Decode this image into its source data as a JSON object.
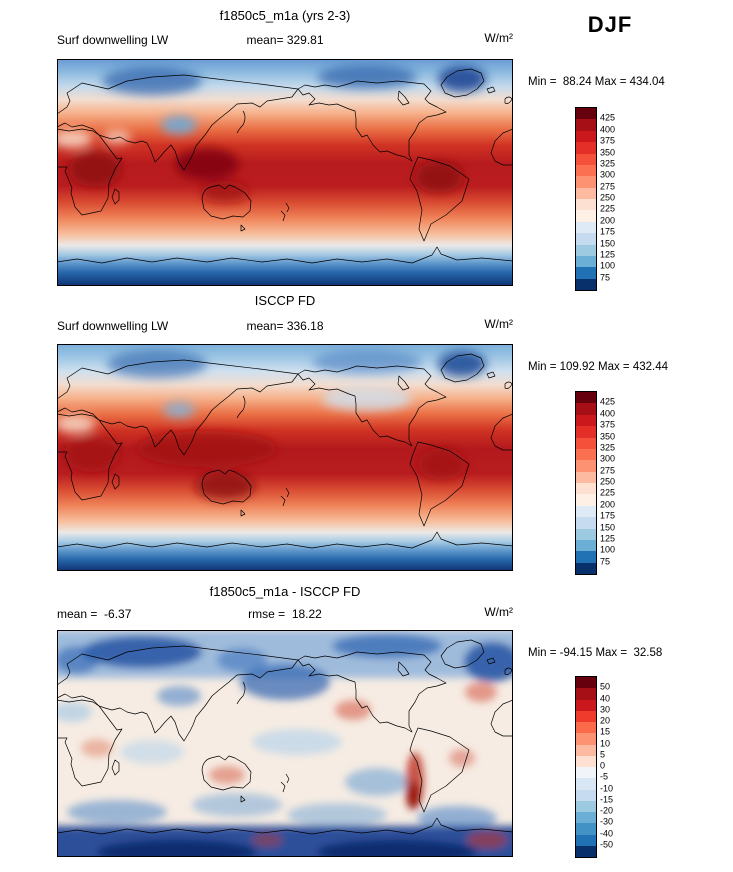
{
  "season": "DJF",
  "panels": [
    {
      "title": "f1850c5_m1a (yrs 2-3)",
      "field_label": "Surf downwelling LW",
      "mean_label": "mean= 329.81",
      "units": "W/m²",
      "minmax": "Min =  88.24 Max = 434.04",
      "colorbar": {
        "ticks": [
          "425",
          "400",
          "375",
          "350",
          "325",
          "300",
          "275",
          "250",
          "225",
          "200",
          "175",
          "150",
          "125",
          "100",
          "75"
        ],
        "colors": [
          "#67000d",
          "#a50f15",
          "#cb181d",
          "#e32f27",
          "#f4503a",
          "#fb7050",
          "#fc9272",
          "#fcbba1",
          "#fee0d2",
          "#fff0e6",
          "#deebf7",
          "#c6dbef",
          "#9ecae1",
          "#6baed6",
          "#2171b5",
          "#08306b"
        ]
      }
    },
    {
      "title": "ISCCP FD",
      "field_label": "Surf downwelling LW",
      "mean_label": "mean= 336.18",
      "units": "W/m²",
      "minmax": "Min = 109.92 Max = 432.44",
      "colorbar": {
        "ticks": [
          "425",
          "400",
          "375",
          "350",
          "325",
          "300",
          "275",
          "250",
          "225",
          "200",
          "175",
          "150",
          "125",
          "100",
          "75"
        ],
        "colors": [
          "#67000d",
          "#a50f15",
          "#cb181d",
          "#e32f27",
          "#f4503a",
          "#fb7050",
          "#fc9272",
          "#fcbba1",
          "#fee0d2",
          "#fff0e6",
          "#deebf7",
          "#c6dbef",
          "#9ecae1",
          "#6baed6",
          "#2171b5",
          "#08306b"
        ]
      }
    },
    {
      "title": "f1850c5_m1a - ISCCP FD",
      "mean_label": "mean =  -6.37",
      "rmse_label": "rmse =  18.22",
      "units": "W/m²",
      "minmax": "Min = -94.15 Max =  32.58",
      "colorbar": {
        "ticks": [
          "50",
          "40",
          "30",
          "20",
          "15",
          "10",
          "5",
          "0",
          "-5",
          "-10",
          "-15",
          "-20",
          "-30",
          "-40",
          "-50"
        ],
        "colors": [
          "#67000d",
          "#a50f15",
          "#cb181d",
          "#ef3b2c",
          "#fb6a4a",
          "#fc9272",
          "#fcbba1",
          "#fee0d2",
          "#f1f5f9",
          "#d9e7f5",
          "#c6dbef",
          "#9ecae1",
          "#6baed6",
          "#4292c6",
          "#2171b5",
          "#08306b"
        ]
      }
    }
  ],
  "chart_data": [
    {
      "type": "heatmap",
      "title": "f1850c5_m1a (yrs 2-3)",
      "variable": "Surf downwelling LW",
      "units": "W/m²",
      "season": "DJF",
      "mean": 329.81,
      "min": 88.24,
      "max": 434.04,
      "colorbar_levels": [
        75,
        100,
        125,
        150,
        175,
        200,
        225,
        250,
        275,
        300,
        325,
        350,
        375,
        400,
        425
      ],
      "description": "Global lat-lon filled-contour map; high values (dark red ~425) across tropics, low values (dark blue ~75) over Arctic, Greenland and Antarctica"
    },
    {
      "type": "heatmap",
      "title": "ISCCP FD",
      "variable": "Surf downwelling LW",
      "units": "W/m²",
      "season": "DJF",
      "mean": 336.18,
      "min": 109.92,
      "max": 432.44,
      "colorbar_levels": [
        75,
        100,
        125,
        150,
        175,
        200,
        225,
        250,
        275,
        300,
        325,
        350,
        375,
        400,
        425
      ],
      "description": "Observational reference map with same color scale; broad dark-red tropical band, blue polar caps"
    },
    {
      "type": "heatmap",
      "title": "f1850c5_m1a - ISCCP FD",
      "variable": "Surf downwelling LW difference",
      "units": "W/m²",
      "season": "DJF",
      "mean": -6.37,
      "rmse": 18.22,
      "min": -94.15,
      "max": 32.58,
      "colorbar_levels": [
        -50,
        -40,
        -30,
        -20,
        -15,
        -10,
        -5,
        0,
        5,
        10,
        15,
        20,
        30,
        40,
        50
      ],
      "description": "Difference map: strong negative (blue) over northern high latitudes and Antarctica, positive (red) along Andes and scattered subtropical spots, near-zero (pale) over most tropics"
    }
  ]
}
